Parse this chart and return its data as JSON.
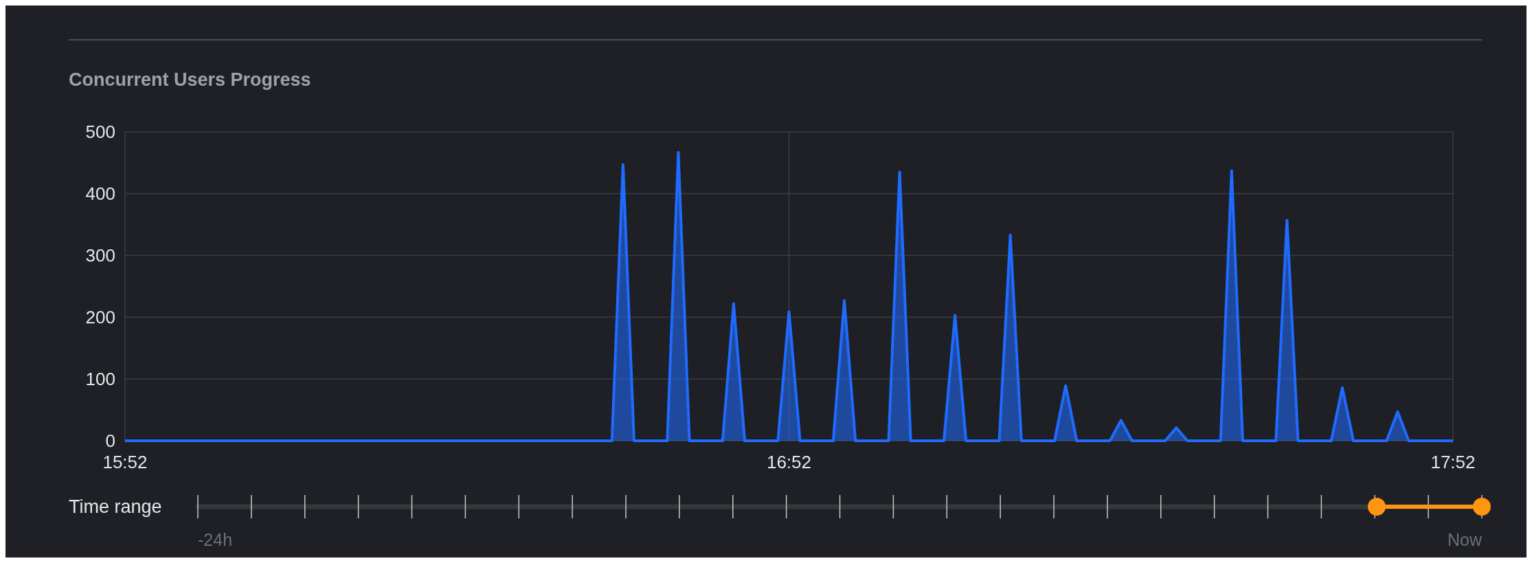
{
  "chart_data": {
    "type": "area",
    "title": "Concurrent Users Progress",
    "x": [
      15.8667,
      16.6,
      16.6167,
      16.6333,
      16.6833,
      16.7,
      16.7167,
      16.7667,
      16.7833,
      16.8,
      16.85,
      16.8667,
      16.8833,
      16.9333,
      16.95,
      16.9667,
      17.0167,
      17.0333,
      17.05,
      17.1,
      17.1167,
      17.1333,
      17.1833,
      17.2,
      17.2167,
      17.2667,
      17.2833,
      17.3,
      17.35,
      17.3667,
      17.3833,
      17.4333,
      17.45,
      17.4667,
      17.5167,
      17.5333,
      17.55,
      17.6,
      17.6167,
      17.6333,
      17.6833,
      17.7,
      17.7167,
      17.7667,
      17.7833,
      17.8,
      17.8667
    ],
    "series": [
      {
        "color": "#1f6bff",
        "values": [
          0,
          0,
          447,
          0,
          0,
          467,
          0,
          0,
          222,
          0,
          0,
          209,
          0,
          0,
          227,
          0,
          0,
          435,
          0,
          0,
          203,
          0,
          0,
          333,
          0,
          0,
          89,
          0,
          0,
          33,
          0,
          0,
          21,
          0,
          0,
          437,
          0,
          0,
          357,
          0,
          0,
          86,
          0,
          0,
          47,
          0,
          0
        ]
      }
    ],
    "xlim": [
      15.8667,
      17.8667
    ],
    "xticks": [
      {
        "value": 15.8667,
        "label": "15:52"
      },
      {
        "value": 16.8667,
        "label": "16:52"
      },
      {
        "value": 17.8667,
        "label": "17:52"
      }
    ],
    "ylim": [
      0,
      500
    ],
    "yticks": [
      0,
      100,
      200,
      300,
      400,
      500
    ],
    "grid": true,
    "annotations": [
      "Time range",
      "-24h",
      "Now"
    ]
  }
}
